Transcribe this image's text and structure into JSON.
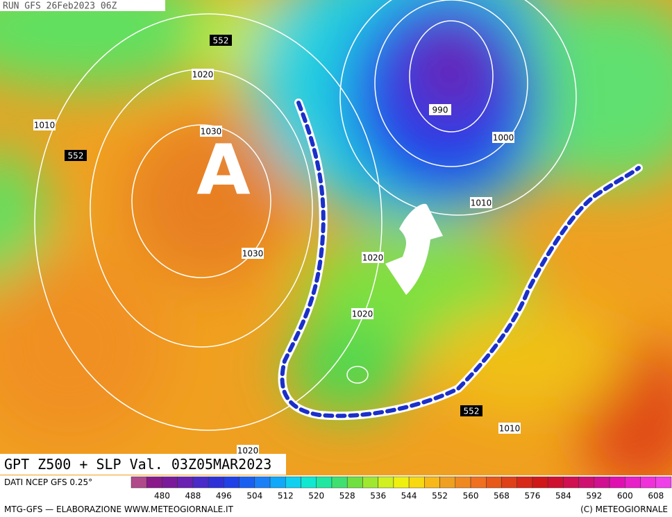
{
  "header": {
    "run": "RUN GFS 26Feb2023 06Z"
  },
  "map": {
    "pressure_center": "A",
    "contour_labels": [
      552,
      1020,
      1010,
      552,
      1030,
      990,
      1000,
      1010,
      1030,
      1020,
      1020,
      552,
      1010,
      1020
    ]
  },
  "footer": {
    "title": "GPT Z500 + SLP Val. 03Z05MAR2023",
    "source": "DATI NCEP GFS 0.25°",
    "credits": "MTG-GFS — ELABORAZIONE WWW.METEOGIORNALE.IT",
    "copyright": "(C) METEOGIORNALE"
  },
  "legend": {
    "labels": [
      480,
      488,
      496,
      504,
      512,
      520,
      528,
      536,
      544,
      552,
      560,
      568,
      576,
      584,
      592,
      600,
      608
    ],
    "colors": [
      "#b04a8a",
      "#8a1a8a",
      "#7a1a9a",
      "#6a20b0",
      "#4a2ac8",
      "#3030d8",
      "#2040e8",
      "#1a60f0",
      "#1a80f8",
      "#10a8f8",
      "#10d0f0",
      "#10e8d0",
      "#20e8a0",
      "#40e070",
      "#70e040",
      "#a0e830",
      "#d0f020",
      "#f0f010",
      "#f8d810",
      "#f8b818",
      "#f0a020",
      "#f08820",
      "#f07020",
      "#e85818",
      "#e04018",
      "#d82818",
      "#d01818",
      "#d01030",
      "#d01050",
      "#d01070",
      "#d01090",
      "#e010b0",
      "#e820c8",
      "#f030d8",
      "#f040e8"
    ]
  }
}
